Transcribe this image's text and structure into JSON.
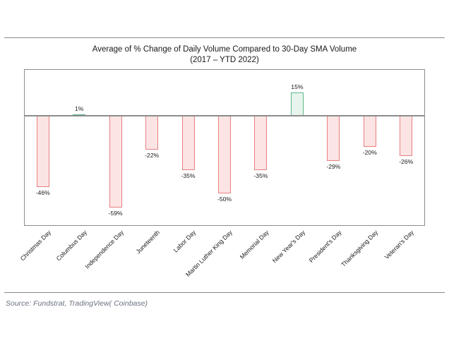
{
  "page": {
    "source": "Source: Fundstrat, TradingView( Coinbase)"
  },
  "colors": {
    "positive_fill": "#e8f5ee",
    "positive_border": "#5cb98a",
    "negative_fill": "#fce4e4",
    "negative_border": "#e88080",
    "axis": "#8c8c8c",
    "rule": "#84888f",
    "source_text": "#6a7180"
  },
  "chart_data": {
    "type": "bar",
    "title": "Average of % Change of Daily Volume Compared to 30-Day SMA Volume",
    "subtitle": "(2017 – YTD 2022)",
    "xlabel": "",
    "ylabel": "",
    "unit": "%",
    "grid": false,
    "legend": null,
    "ylim": [
      -70,
      30
    ],
    "categories": [
      "Christmas Day",
      "Columbus Day",
      "Independence Day",
      "Juneteenth",
      "Labor Day",
      "Martin Luther King Day",
      "Memorial Day",
      "New Year's Day",
      "President's Day",
      "Thanksgiving Day",
      "Veteran's Day"
    ],
    "values": [
      -46,
      1,
      -59,
      -22,
      -35,
      -50,
      -35,
      15,
      -29,
      -20,
      -26
    ],
    "value_labels": [
      "-46%",
      "1%",
      "-59%",
      "-22%",
      "-35%",
      "-50%",
      "-35%",
      "15%",
      "-29%",
      "-20%",
      "-26%"
    ],
    "color_rule": "green bar if positive, red bar if negative"
  }
}
